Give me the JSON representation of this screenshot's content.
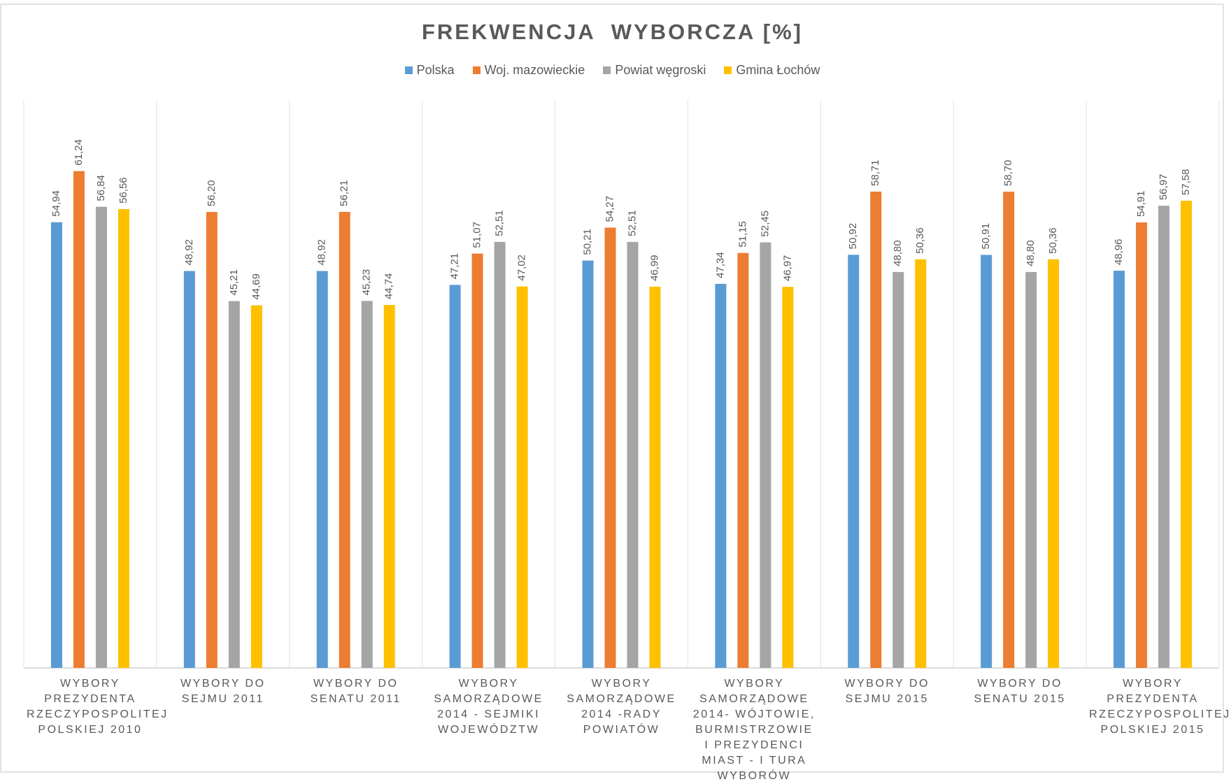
{
  "chart_data": {
    "type": "bar",
    "title": "FREKWENCJA  WYBORCZA [%]",
    "categories": [
      "WYBORY PREZYDENTA RZECZYPOSPOLITEJ POLSKIEJ 2010",
      "WYBORY DO SEJMU 2011",
      "WYBORY DO SENATU 2011",
      "WYBORY SAMORZĄDOWE 2014 - SEJMIKI WOJEWÓDZTW",
      "WYBORY SAMORZĄDOWE 2014 -RADY POWIATÓW",
      "WYBORY SAMORZĄDOWE 2014- WÓJTOWIE, BURMISTRZOWIE I PREZYDENCI MIAST - I TURA WYBORÓW",
      "WYBORY DO SEJMU 2015",
      "WYBORY DO SENATU 2015",
      "WYBORY PREZYDENTA RZECZYPOSPOLITEJ POLSKIEJ 2015"
    ],
    "series": [
      {
        "name": "Polska",
        "color": "#5b9bd5",
        "values": [
          54.94,
          48.92,
          48.92,
          47.21,
          50.21,
          47.34,
          50.92,
          50.91,
          48.96
        ],
        "value_labels": [
          "54,94",
          "48,92",
          "48,92",
          "47,21",
          "50,21",
          "47,34",
          "50,92",
          "50,91",
          "48,96"
        ]
      },
      {
        "name": "Woj. mazowieckie",
        "color": "#ed7d31",
        "values": [
          61.24,
          56.2,
          56.21,
          51.07,
          54.27,
          51.15,
          58.71,
          58.7,
          54.91
        ],
        "value_labels": [
          "61,24",
          "56,20",
          "56,21",
          "51,07",
          "54,27",
          "51,15",
          "58,71",
          "58,70",
          "54,91"
        ]
      },
      {
        "name": "Powiat węgroski",
        "color": "#a5a5a5",
        "values": [
          56.84,
          45.21,
          45.23,
          52.51,
          52.51,
          52.45,
          48.8,
          48.8,
          56.97
        ],
        "value_labels": [
          "56,84",
          "45,21",
          "45,23",
          "52,51",
          "52,51",
          "52,45",
          "48,80",
          "48,80",
          "56,97"
        ]
      },
      {
        "name": "Gmina Łochów",
        "color": "#ffc000",
        "values": [
          56.56,
          44.69,
          44.74,
          47.02,
          46.99,
          46.97,
          50.36,
          50.36,
          57.58
        ],
        "value_labels": [
          "56,56",
          "44,69",
          "44,74",
          "47,02",
          "46,99",
          "46,97",
          "50,36",
          "50,36",
          "57,58"
        ]
      }
    ],
    "ylim": [
      0,
      70
    ]
  }
}
